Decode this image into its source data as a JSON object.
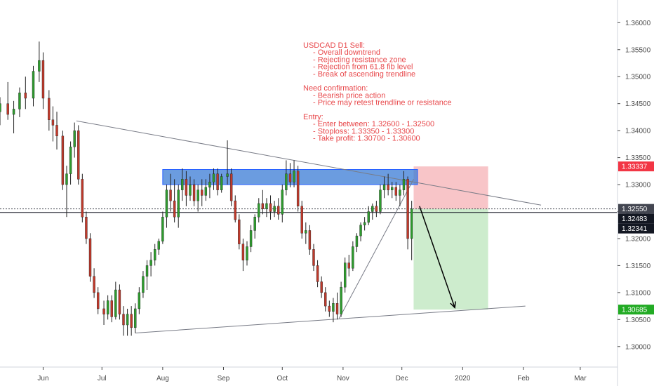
{
  "chart_data": {
    "type": "candlestick",
    "symbol_note": "USDCAD D1",
    "ylim": [
      1.2962,
      1.3642
    ],
    "y_ticks": [
      "1.36000",
      "1.35500",
      "1.35000",
      "1.34500",
      "1.34000",
      "1.33500",
      "1.33000",
      "1.32500",
      "1.32000",
      "1.31500",
      "1.31000",
      "1.30500",
      "1.30000"
    ],
    "y_tick_values": [
      1.36,
      1.355,
      1.35,
      1.345,
      1.34,
      1.335,
      1.33,
      1.325,
      1.32,
      1.315,
      1.31,
      1.305,
      1.3
    ],
    "x_ticks": [
      {
        "label": "Jun",
        "date": "2019-06-01"
      },
      {
        "label": "Jul",
        "date": "2019-07-01"
      },
      {
        "label": "Aug",
        "date": "2019-08-01"
      },
      {
        "label": "Sep",
        "date": "2019-09-01"
      },
      {
        "label": "Oct",
        "date": "2019-10-01"
      },
      {
        "label": "Nov",
        "date": "2019-11-01"
      },
      {
        "label": "Dec",
        "date": "2019-12-01"
      },
      {
        "label": "2020",
        "date": "2020-01-01"
      },
      {
        "label": "Feb",
        "date": "2020-02-01"
      },
      {
        "label": "Mar",
        "date": "2020-03-01"
      }
    ],
    "x_range": [
      "2019-05-10",
      "2020-03-20"
    ],
    "candles": [
      [
        "2019-05-10",
        1.3435,
        1.3462,
        1.341,
        1.345
      ],
      [
        "2019-05-14",
        1.345,
        1.349,
        1.342,
        1.343
      ],
      [
        "2019-05-17",
        1.343,
        1.3455,
        1.3395,
        1.344
      ],
      [
        "2019-05-20",
        1.344,
        1.348,
        1.3425,
        1.347
      ],
      [
        "2019-05-23",
        1.347,
        1.35,
        1.344,
        1.346
      ],
      [
        "2019-05-27",
        1.346,
        1.352,
        1.3445,
        1.351
      ],
      [
        "2019-05-30",
        1.351,
        1.3565,
        1.349,
        1.353
      ],
      [
        "2019-06-01",
        1.353,
        1.3545,
        1.344,
        1.346
      ],
      [
        "2019-06-04",
        1.346,
        1.3475,
        1.34,
        1.342
      ],
      [
        "2019-06-06",
        1.342,
        1.3445,
        1.338,
        1.341
      ],
      [
        "2019-06-08",
        1.341,
        1.3435,
        1.3365,
        1.339
      ],
      [
        "2019-06-11",
        1.339,
        1.34,
        1.329,
        1.33
      ],
      [
        "2019-06-13",
        1.33,
        1.3335,
        1.324,
        1.332
      ],
      [
        "2019-06-15",
        1.332,
        1.338,
        1.33,
        1.337
      ],
      [
        "2019-06-17",
        1.337,
        1.3415,
        1.335,
        1.34
      ],
      [
        "2019-06-19",
        1.34,
        1.341,
        1.33,
        1.331
      ],
      [
        "2019-06-21",
        1.331,
        1.332,
        1.323,
        1.324
      ],
      [
        "2019-06-23",
        1.324,
        1.325,
        1.319,
        1.32
      ],
      [
        "2019-06-25",
        1.32,
        1.321,
        1.312,
        1.313
      ],
      [
        "2019-06-27",
        1.313,
        1.3145,
        1.309,
        1.31
      ],
      [
        "2019-06-29",
        1.31,
        1.311,
        1.306,
        1.307
      ],
      [
        "2019-07-02",
        1.307,
        1.3085,
        1.304,
        1.306
      ],
      [
        "2019-07-04",
        1.306,
        1.3095,
        1.305,
        1.3085
      ],
      [
        "2019-07-06",
        1.3085,
        1.3095,
        1.3045,
        1.3055
      ],
      [
        "2019-07-08",
        1.3055,
        1.312,
        1.305,
        1.3105
      ],
      [
        "2019-07-10",
        1.3105,
        1.3115,
        1.305,
        1.306
      ],
      [
        "2019-07-12",
        1.306,
        1.3075,
        1.302,
        1.304
      ],
      [
        "2019-07-14",
        1.304,
        1.307,
        1.302,
        1.306
      ],
      [
        "2019-07-16",
        1.306,
        1.3075,
        1.302,
        1.3035
      ],
      [
        "2019-07-18",
        1.3035,
        1.308,
        1.3025,
        1.307
      ],
      [
        "2019-07-20",
        1.307,
        1.311,
        1.306,
        1.31
      ],
      [
        "2019-07-22",
        1.31,
        1.314,
        1.309,
        1.313
      ],
      [
        "2019-07-24",
        1.313,
        1.316,
        1.3105,
        1.315
      ],
      [
        "2019-07-26",
        1.315,
        1.3175,
        1.313,
        1.316
      ],
      [
        "2019-07-28",
        1.316,
        1.319,
        1.315,
        1.318
      ],
      [
        "2019-07-30",
        1.318,
        1.32,
        1.317,
        1.3195
      ],
      [
        "2019-08-01",
        1.3195,
        1.325,
        1.319,
        1.324
      ],
      [
        "2019-08-03",
        1.324,
        1.33,
        1.322,
        1.329
      ],
      [
        "2019-08-05",
        1.329,
        1.332,
        1.325,
        1.327
      ],
      [
        "2019-08-07",
        1.327,
        1.331,
        1.323,
        1.324
      ],
      [
        "2019-08-09",
        1.324,
        1.33,
        1.322,
        1.329
      ],
      [
        "2019-08-11",
        1.329,
        1.333,
        1.327,
        1.331
      ],
      [
        "2019-08-13",
        1.331,
        1.3325,
        1.326,
        1.328
      ],
      [
        "2019-08-15",
        1.328,
        1.3315,
        1.327,
        1.33
      ],
      [
        "2019-08-17",
        1.33,
        1.331,
        1.326,
        1.327
      ],
      [
        "2019-08-19",
        1.327,
        1.33,
        1.325,
        1.329
      ],
      [
        "2019-08-21",
        1.329,
        1.331,
        1.326,
        1.328
      ],
      [
        "2019-08-23",
        1.328,
        1.331,
        1.327,
        1.3295
      ],
      [
        "2019-08-25",
        1.3295,
        1.332,
        1.3275,
        1.3305
      ],
      [
        "2019-08-27",
        1.3305,
        1.333,
        1.329,
        1.332
      ],
      [
        "2019-08-29",
        1.332,
        1.333,
        1.328,
        1.329
      ],
      [
        "2019-08-31",
        1.329,
        1.332,
        1.3285,
        1.3315
      ],
      [
        "2019-09-03",
        1.3315,
        1.3382,
        1.33,
        1.332
      ],
      [
        "2019-09-05",
        1.332,
        1.333,
        1.326,
        1.327
      ],
      [
        "2019-09-07",
        1.327,
        1.328,
        1.323,
        1.3235
      ],
      [
        "2019-09-09",
        1.3235,
        1.3245,
        1.318,
        1.319
      ],
      [
        "2019-09-11",
        1.319,
        1.32,
        1.314,
        1.316
      ],
      [
        "2019-09-13",
        1.316,
        1.3195,
        1.315,
        1.3185
      ],
      [
        "2019-09-15",
        1.3185,
        1.3225,
        1.3175,
        1.3215
      ],
      [
        "2019-09-17",
        1.3215,
        1.3245,
        1.32,
        1.324
      ],
      [
        "2019-09-19",
        1.324,
        1.3275,
        1.323,
        1.3265
      ],
      [
        "2019-09-21",
        1.3265,
        1.329,
        1.3245,
        1.3255
      ],
      [
        "2019-09-23",
        1.3255,
        1.3275,
        1.324,
        1.3265
      ],
      [
        "2019-09-25",
        1.3265,
        1.328,
        1.3235,
        1.325
      ],
      [
        "2019-09-27",
        1.325,
        1.327,
        1.324,
        1.326
      ],
      [
        "2019-09-29",
        1.326,
        1.3275,
        1.3235,
        1.3245
      ],
      [
        "2019-10-01",
        1.3245,
        1.33,
        1.323,
        1.329
      ],
      [
        "2019-10-03",
        1.329,
        1.3345,
        1.328,
        1.332
      ],
      [
        "2019-10-05",
        1.332,
        1.334,
        1.3295,
        1.3305
      ],
      [
        "2019-10-07",
        1.3305,
        1.3345,
        1.3295,
        1.3325
      ],
      [
        "2019-10-09",
        1.3325,
        1.3335,
        1.325,
        1.326
      ],
      [
        "2019-10-11",
        1.326,
        1.327,
        1.32,
        1.321
      ],
      [
        "2019-10-13",
        1.321,
        1.323,
        1.319,
        1.3215
      ],
      [
        "2019-10-15",
        1.3215,
        1.3225,
        1.317,
        1.318
      ],
      [
        "2019-10-17",
        1.318,
        1.319,
        1.314,
        1.315
      ],
      [
        "2019-10-19",
        1.315,
        1.316,
        1.311,
        1.312
      ],
      [
        "2019-10-21",
        1.312,
        1.313,
        1.309,
        1.31
      ],
      [
        "2019-10-23",
        1.31,
        1.311,
        1.3065,
        1.3075
      ],
      [
        "2019-10-25",
        1.3075,
        1.3085,
        1.3055,
        1.3065
      ],
      [
        "2019-10-27",
        1.3065,
        1.309,
        1.3045,
        1.308
      ],
      [
        "2019-10-29",
        1.308,
        1.31,
        1.305,
        1.306
      ],
      [
        "2019-10-31",
        1.306,
        1.312,
        1.3055,
        1.311
      ],
      [
        "2019-11-02",
        1.311,
        1.3165,
        1.31,
        1.3155
      ],
      [
        "2019-11-04",
        1.3155,
        1.317,
        1.313,
        1.3145
      ],
      [
        "2019-11-06",
        1.3145,
        1.3195,
        1.314,
        1.3185
      ],
      [
        "2019-11-08",
        1.3185,
        1.321,
        1.3175,
        1.3205
      ],
      [
        "2019-11-10",
        1.3205,
        1.323,
        1.3195,
        1.3225
      ],
      [
        "2019-11-12",
        1.3225,
        1.324,
        1.3215,
        1.323
      ],
      [
        "2019-11-14",
        1.323,
        1.326,
        1.3225,
        1.325
      ],
      [
        "2019-11-16",
        1.325,
        1.3265,
        1.3235,
        1.326
      ],
      [
        "2019-11-18",
        1.326,
        1.327,
        1.324,
        1.325
      ],
      [
        "2019-11-20",
        1.325,
        1.33,
        1.3245,
        1.329
      ],
      [
        "2019-11-22",
        1.329,
        1.3315,
        1.3275,
        1.33
      ],
      [
        "2019-11-24",
        1.33,
        1.332,
        1.328,
        1.329
      ],
      [
        "2019-11-26",
        1.329,
        1.3305,
        1.3275,
        1.3295
      ],
      [
        "2019-11-28",
        1.3295,
        1.3305,
        1.327,
        1.328
      ],
      [
        "2019-11-30",
        1.328,
        1.33,
        1.326,
        1.329
      ],
      [
        "2019-12-02",
        1.329,
        1.3325,
        1.328,
        1.331
      ],
      [
        "2019-12-04",
        1.331,
        1.3315,
        1.318,
        1.32
      ],
      [
        "2019-12-06",
        1.32,
        1.327,
        1.316,
        1.3255
      ]
    ],
    "resistance_zone": {
      "from_date": "2019-08-01",
      "to_date": "2019-12-09",
      "top": 1.3328,
      "bottom": 1.33
    },
    "trendline_descending": {
      "from": [
        "2019-06-18",
        1.3418
      ],
      "to": [
        "2020-02-10",
        1.3262
      ]
    },
    "trendline_support": {
      "from": [
        "2019-07-18",
        1.3025
      ],
      "to": [
        "2020-02-02",
        1.3075
      ]
    },
    "trendline_ascending": {
      "from": [
        "2019-10-30",
        1.3052
      ],
      "to": [
        "2019-12-07",
        1.331
      ]
    },
    "position": {
      "entry": 1.3255,
      "stop": 1.33337,
      "target": 1.30685,
      "from_date": "2019-12-07",
      "to_date": "2020-01-14"
    },
    "projection_arrow": {
      "from": [
        "2019-12-10",
        1.326
      ],
      "to": [
        "2019-12-28",
        1.3072
      ]
    },
    "h_lines": [
      1.3255,
      1.32483
    ],
    "price_labels": [
      {
        "text": "1.33337",
        "value": 1.33337,
        "color": "#f23645"
      },
      {
        "text": "1.32550",
        "value": 1.3255,
        "color": "#434651"
      },
      {
        "text": "1.32483",
        "value": 1.32483,
        "color": "#131722"
      },
      {
        "text": "1.32341",
        "value": 1.32341,
        "color": "#131722"
      },
      {
        "text": "1.30685",
        "value": 1.30685,
        "color": "#22ab24"
      }
    ],
    "annotation_lines": [
      "USDCAD D1 Sell:",
      "- Overall downtrend",
      "- Rejecting resistance zone",
      "- Rejection from 61.8 fib level",
      "- Break of ascending trendline",
      "",
      "Need confirmation:",
      "- Bearish price action",
      "- Price may retest trendline or resistance",
      "",
      "Entry:",
      "- Enter between: 1.32600 - 1.32500",
      "- Stoploss: 1.33350 - 1.33300",
      "- Take profit: 1.30700 - 1.30600"
    ],
    "annotation_indent": [
      false,
      true,
      true,
      true,
      true,
      false,
      false,
      true,
      true,
      false,
      false,
      true,
      true,
      true
    ],
    "colors": {
      "up": "#26a69a",
      "up_fill": "#2e9c2e",
      "down": "#c0392b",
      "zone": "#3a7bd5",
      "stop_zone": "#f8c5c8",
      "profit_zone": "#cdeccd",
      "annotation": "#e8484b",
      "axis": "#4a4a4a"
    },
    "grid": false
  }
}
